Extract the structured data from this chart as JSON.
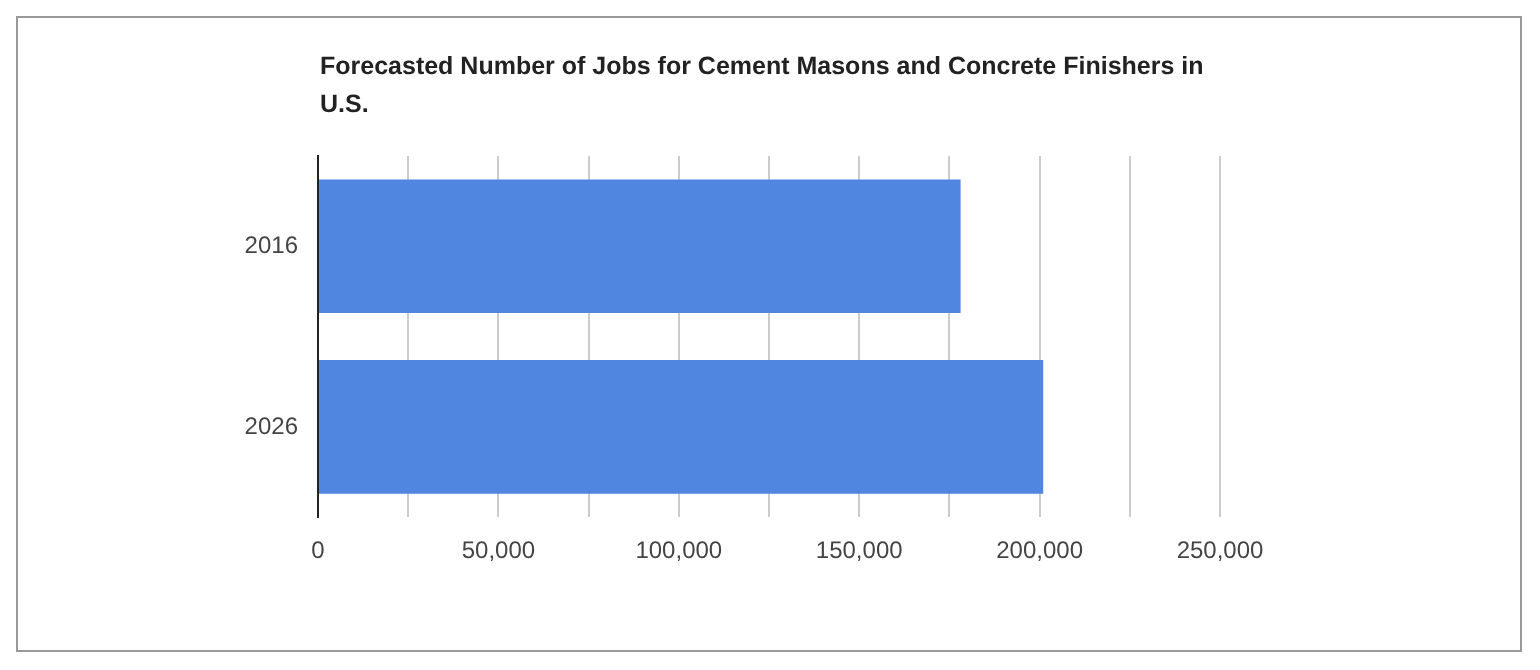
{
  "chart_data": {
    "type": "bar",
    "orientation": "horizontal",
    "title": "Forecasted Number of Jobs for Cement Masons and Concrete Finishers in U.S.",
    "categories": [
      "2016",
      "2026"
    ],
    "values": [
      178100,
      201000
    ],
    "color": "#5085e0",
    "xlim": [
      0,
      250000
    ],
    "xticks": [
      0,
      {
        "value": 25000,
        "label": null
      },
      {
        "value": 50000,
        "label": "50,000"
      },
      {
        "value": 75000,
        "label": null
      },
      {
        "value": 100000,
        "label": "100,000"
      },
      {
        "value": 125000,
        "label": null
      },
      {
        "value": 150000,
        "label": "150,000"
      },
      {
        "value": 175000,
        "label": null
      },
      {
        "value": 200000,
        "label": "200,000"
      },
      {
        "value": 225000,
        "label": null
      },
      {
        "value": 250000,
        "label": "250,000"
      }
    ],
    "grid": "x"
  }
}
